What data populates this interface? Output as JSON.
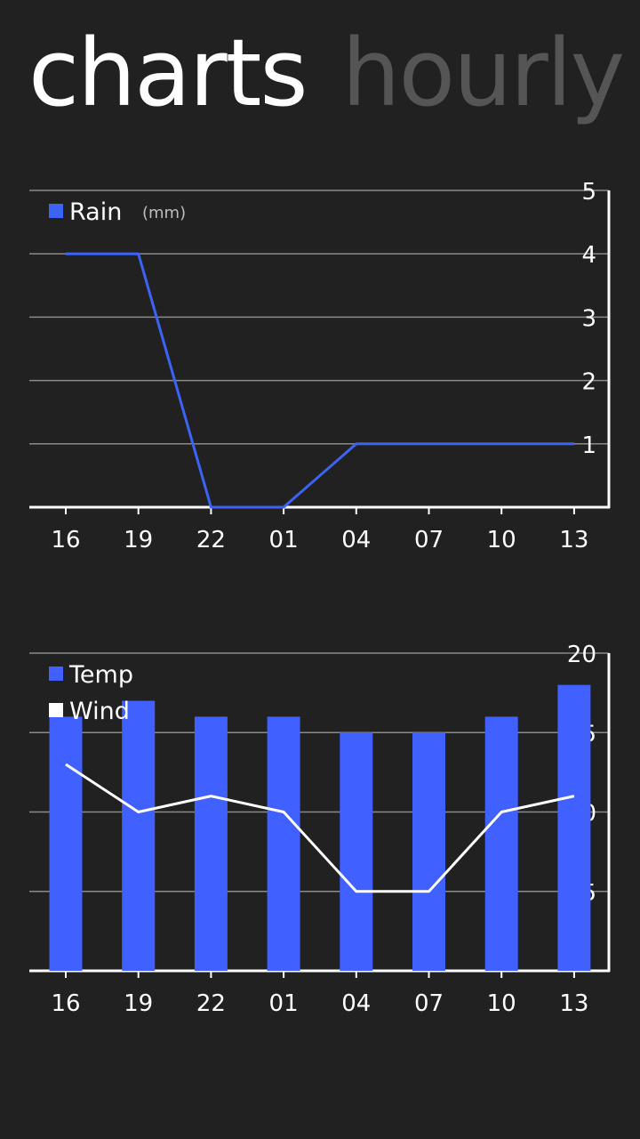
{
  "pivot": {
    "active": "charts",
    "inactive": "hourly"
  },
  "chart_data": [
    {
      "type": "line",
      "x": [
        "16",
        "19",
        "22",
        "01",
        "04",
        "07",
        "10",
        "13"
      ],
      "series": [
        {
          "name": "Rain",
          "values": [
            4,
            4,
            0,
            0,
            1,
            1,
            1,
            1
          ],
          "color": "#3d63f5"
        }
      ],
      "unit": "(mm)",
      "ylim": [
        0,
        5
      ],
      "yticks": [
        1,
        2,
        3,
        4,
        5
      ],
      "grid": true,
      "legend": "top-left",
      "yaxis": "right"
    },
    {
      "type": "bar",
      "x": [
        "16",
        "19",
        "22",
        "01",
        "04",
        "07",
        "10",
        "13"
      ],
      "series": [
        {
          "name": "Temp",
          "kind": "bar",
          "values": [
            16,
            17,
            16,
            16,
            15,
            15,
            16,
            18
          ],
          "color": "#4060ff"
        },
        {
          "name": "Wind",
          "kind": "line",
          "values": [
            13,
            10,
            11,
            10,
            5,
            5,
            10,
            11
          ],
          "color": "#ffffff"
        }
      ],
      "ylim": [
        0,
        20
      ],
      "yticks": [
        5,
        10,
        15,
        20
      ],
      "grid": true,
      "legend": "top-left",
      "yaxis": "right"
    }
  ]
}
